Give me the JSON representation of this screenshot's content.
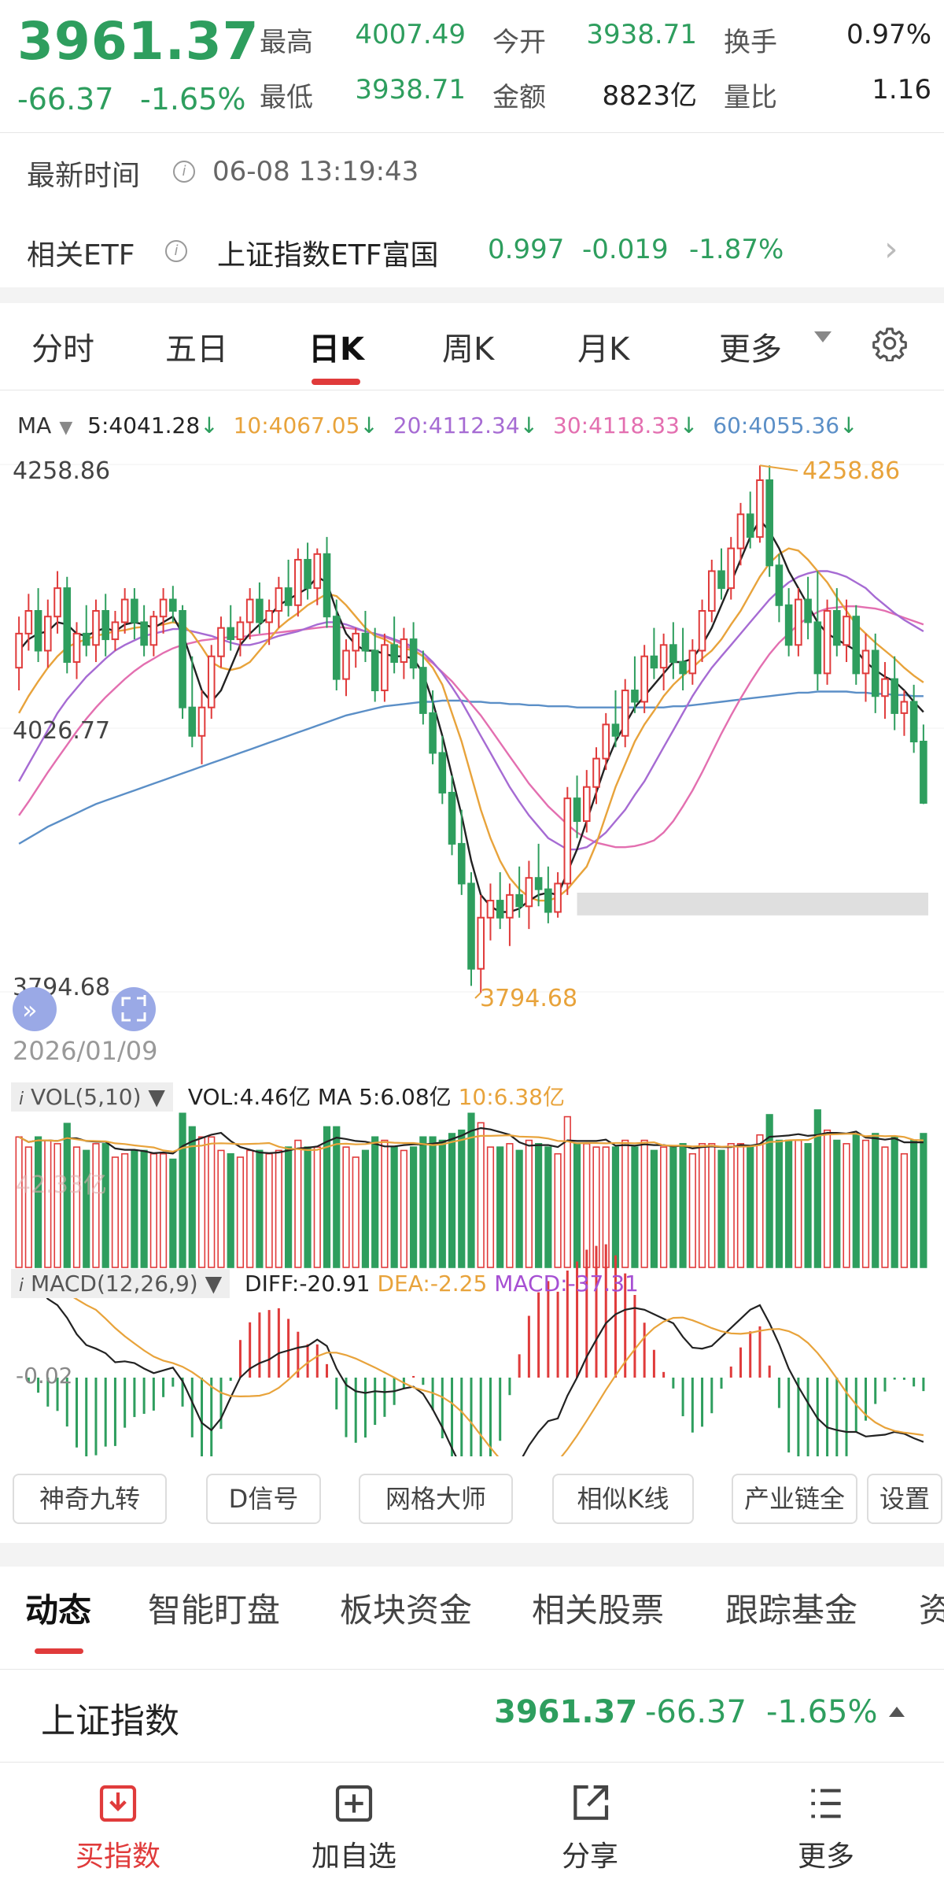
{
  "quote": {
    "price": "3961.37",
    "change": "-66.37",
    "change_pct": "-1.65%",
    "high_label": "最高",
    "high": "4007.49",
    "low_label": "最低",
    "low": "3938.71",
    "open_label": "今开",
    "open": "3938.71",
    "amount_label": "金额",
    "amount": "8823亿",
    "turnover_label": "换手",
    "turnover": "0.97%",
    "volratio_label": "量比",
    "volratio": "1.16"
  },
  "latest_time": {
    "label": "最新时间",
    "value": "06-08 13:19:43"
  },
  "etf": {
    "label": "相关ETF",
    "name": "上证指数ETF富国",
    "price": "0.997",
    "change": "-0.019",
    "change_pct": "-1.87%"
  },
  "period_tabs": [
    "分时",
    "五日",
    "日K",
    "周K",
    "月K",
    "更多"
  ],
  "active_period": "日K",
  "ma_legend": {
    "label": "MA",
    "ma5": "5:4041.28",
    "ma10": "10:4067.05",
    "ma20": "20:4112.34",
    "ma30": "30:4118.33",
    "ma60": "60:4055.36"
  },
  "colors": {
    "up": "#e03b3b",
    "down": "#2e9e5e",
    "ma5": "#222222",
    "ma10": "#e8a33b",
    "ma20": "#a66bd3",
    "ma30": "#e36fb0",
    "ma60": "#5b8fc7"
  },
  "chart_data": [
    {
      "type": "candlestick",
      "price_labels": {
        "top": "4258.86",
        "mid": "4026.77",
        "bottom": "3794.68"
      },
      "annotations": {
        "high": "4258.86",
        "low": "3794.68"
      },
      "start_date": "2026/01/09",
      "ylim": [
        3794.68,
        4258.86
      ],
      "ohlc": [
        [
          4080,
          4125,
          4060,
          4110
        ],
        [
          4110,
          4145,
          4095,
          4130
        ],
        [
          4130,
          4150,
          4085,
          4095
        ],
        [
          4095,
          4140,
          4080,
          4125
        ],
        [
          4125,
          4165,
          4110,
          4150
        ],
        [
          4150,
          4160,
          4075,
          4085
        ],
        [
          4085,
          4120,
          4070,
          4110
        ],
        [
          4110,
          4135,
          4090,
          4100
        ],
        [
          4100,
          4140,
          4085,
          4130
        ],
        [
          4130,
          4145,
          4090,
          4105
        ],
        [
          4105,
          4130,
          4095,
          4120
        ],
        [
          4120,
          4150,
          4110,
          4140
        ],
        [
          4140,
          4150,
          4105,
          4120
        ],
        [
          4120,
          4135,
          4090,
          4100
        ],
        [
          4100,
          4130,
          4090,
          4125
        ],
        [
          4125,
          4150,
          4110,
          4140
        ],
        [
          4140,
          4152,
          4120,
          4130
        ],
        [
          4130,
          4135,
          4035,
          4045
        ],
        [
          4045,
          4090,
          4010,
          4020
        ],
        [
          4020,
          4060,
          3995,
          4045
        ],
        [
          4045,
          4100,
          4035,
          4090
        ],
        [
          4090,
          4125,
          4080,
          4115
        ],
        [
          4115,
          4135,
          4095,
          4105
        ],
        [
          4105,
          4125,
          4090,
          4120
        ],
        [
          4120,
          4150,
          4105,
          4140
        ],
        [
          4140,
          4155,
          4110,
          4120
        ],
        [
          4120,
          4140,
          4100,
          4130
        ],
        [
          4130,
          4160,
          4115,
          4150
        ],
        [
          4150,
          4175,
          4125,
          4135
        ],
        [
          4135,
          4185,
          4125,
          4175
        ],
        [
          4175,
          4190,
          4140,
          4150
        ],
        [
          4150,
          4185,
          4135,
          4180
        ],
        [
          4180,
          4195,
          4115,
          4125
        ],
        [
          4125,
          4140,
          4060,
          4070
        ],
        [
          4070,
          4105,
          4055,
          4095
        ],
        [
          4095,
          4115,
          4080,
          4110
        ],
        [
          4110,
          4130,
          4085,
          4095
        ],
        [
          4095,
          4115,
          4050,
          4060
        ],
        [
          4060,
          4110,
          4050,
          4100
        ],
        [
          4100,
          4125,
          4075,
          4085
        ],
        [
          4085,
          4115,
          4070,
          4105
        ],
        [
          4105,
          4120,
          4070,
          4080
        ],
        [
          4080,
          4095,
          4030,
          4040
        ],
        [
          4040,
          4060,
          3995,
          4005
        ],
        [
          4005,
          4020,
          3960,
          3970
        ],
        [
          3970,
          3985,
          3915,
          3925
        ],
        [
          3925,
          3955,
          3880,
          3890
        ],
        [
          3890,
          3900,
          3800,
          3815
        ],
        [
          3815,
          3880,
          3794,
          3860
        ],
        [
          3860,
          3890,
          3840,
          3875
        ],
        [
          3875,
          3900,
          3850,
          3860
        ],
        [
          3860,
          3890,
          3835,
          3880
        ],
        [
          3880,
          3905,
          3860,
          3870
        ],
        [
          3870,
          3910,
          3850,
          3895
        ],
        [
          3895,
          3925,
          3870,
          3885
        ],
        [
          3885,
          3905,
          3855,
          3865
        ],
        [
          3865,
          3900,
          3860,
          3890
        ],
        [
          3890,
          3975,
          3880,
          3965
        ],
        [
          3965,
          3985,
          3930,
          3945
        ],
        [
          3945,
          3990,
          3935,
          3975
        ],
        [
          3975,
          4010,
          3960,
          4000
        ],
        [
          4000,
          4040,
          3990,
          4030
        ],
        [
          4030,
          4060,
          4010,
          4020
        ],
        [
          4020,
          4070,
          4010,
          4060
        ],
        [
          4060,
          4090,
          4040,
          4050
        ],
        [
          4050,
          4100,
          4040,
          4090
        ],
        [
          4090,
          4115,
          4070,
          4080
        ],
        [
          4080,
          4110,
          4060,
          4100
        ],
        [
          4100,
          4120,
          4070,
          4085
        ],
        [
          4085,
          4115,
          4060,
          4075
        ],
        [
          4075,
          4105,
          4065,
          4095
        ],
        [
          4095,
          4140,
          4085,
          4130
        ],
        [
          4130,
          4175,
          4120,
          4165
        ],
        [
          4165,
          4185,
          4140,
          4150
        ],
        [
          4150,
          4195,
          4140,
          4185
        ],
        [
          4185,
          4225,
          4170,
          4215
        ],
        [
          4215,
          4235,
          4185,
          4195
        ],
        [
          4195,
          4258,
          4190,
          4245
        ],
        [
          4245,
          4258,
          4160,
          4170
        ],
        [
          4170,
          4180,
          4120,
          4135
        ],
        [
          4135,
          4150,
          4090,
          4100
        ],
        [
          4100,
          4150,
          4090,
          4140
        ],
        [
          4140,
          4160,
          4105,
          4120
        ],
        [
          4120,
          4165,
          4060,
          4075
        ],
        [
          4075,
          4140,
          4065,
          4130
        ],
        [
          4130,
          4150,
          4090,
          4100
        ],
        [
          4100,
          4140,
          4085,
          4125
        ],
        [
          4125,
          4135,
          4065,
          4075
        ],
        [
          4075,
          4110,
          4050,
          4095
        ],
        [
          4095,
          4110,
          4040,
          4055
        ],
        [
          4055,
          4085,
          4035,
          4070
        ],
        [
          4070,
          4090,
          4025,
          4040
        ],
        [
          4040,
          4060,
          4020,
          4050
        ],
        [
          4050,
          4065,
          4005,
          4015
        ],
        [
          4015,
          4030,
          3960,
          3961
        ]
      ],
      "ma_lines": {
        "ma5": [
          4095,
          4105,
          4110,
          4112,
          4120,
          4118,
          4110,
          4108,
          4112,
          4115,
          4112,
          4118,
          4120,
          4118,
          4115,
          4120,
          4125,
          4110,
          4085,
          4060,
          4050,
          4060,
          4080,
          4100,
          4110,
          4118,
          4125,
          4135,
          4140,
          4145,
          4150,
          4160,
          4155,
          4130,
          4110,
          4100,
          4095,
          4095,
          4092,
          4090,
          4090,
          4088,
          4075,
          4050,
          4020,
          3985,
          3950,
          3910,
          3880,
          3870,
          3865,
          3865,
          3868,
          3875,
          3880,
          3882,
          3880,
          3900,
          3920,
          3945,
          3970,
          3995,
          4015,
          4030,
          4045,
          4055,
          4065,
          4075,
          4085,
          4085,
          4088,
          4100,
          4115,
          4135,
          4155,
          4175,
          4195,
          4210,
          4200,
          4185,
          4165,
          4150,
          4135,
          4120,
          4110,
          4105,
          4100,
          4095,
          4085,
          4078,
          4072,
          4068,
          4060,
          4050,
          4041
        ],
        "ma10": [
          4040,
          4055,
          4068,
          4080,
          4090,
          4098,
          4102,
          4105,
          4108,
          4110,
          4112,
          4113,
          4115,
          4116,
          4117,
          4118,
          4120,
          4118,
          4110,
          4098,
          4085,
          4080,
          4078,
          4080,
          4085,
          4095,
          4105,
          4115,
          4122,
          4128,
          4135,
          4140,
          4145,
          4143,
          4135,
          4125,
          4115,
          4108,
          4105,
          4100,
          4097,
          4095,
          4090,
          4080,
          4065,
          4040,
          4015,
          3985,
          3955,
          3930,
          3910,
          3895,
          3885,
          3878,
          3875,
          3875,
          3878,
          3885,
          3895,
          3905,
          3925,
          3950,
          3975,
          3995,
          4015,
          4030,
          4042,
          4055,
          4065,
          4073,
          4080,
          4088,
          4095,
          4105,
          4118,
          4130,
          4145,
          4160,
          4172,
          4180,
          4185,
          4183,
          4175,
          4165,
          4155,
          4142,
          4130,
          4118,
          4110,
          4102,
          4095,
          4088,
          4080,
          4073,
          4067
        ],
        "ma20": [
          3980,
          3995,
          4010,
          4025,
          4040,
          4052,
          4062,
          4072,
          4080,
          4088,
          4095,
          4100,
          4104,
          4108,
          4110,
          4112,
          4114,
          4114,
          4112,
          4110,
          4108,
          4105,
          4102,
          4100,
          4100,
          4102,
          4105,
          4108,
          4110,
          4112,
          4115,
          4118,
          4120,
          4120,
          4118,
          4115,
          4112,
          4110,
          4108,
          4105,
          4102,
          4098,
          4093,
          4085,
          4075,
          4063,
          4050,
          4035,
          4020,
          4005,
          3990,
          3975,
          3962,
          3950,
          3940,
          3930,
          3925,
          3920,
          3920,
          3922,
          3928,
          3935,
          3945,
          3955,
          3968,
          3980,
          3995,
          4010,
          4025,
          4040,
          4055,
          4068,
          4080,
          4090,
          4100,
          4110,
          4120,
          4130,
          4140,
          4148,
          4155,
          4160,
          4163,
          4165,
          4165,
          4163,
          4160,
          4155,
          4150,
          4142,
          4135,
          4128,
          4122,
          4117,
          4112
        ],
        "ma30": [
          3950,
          3962,
          3975,
          3988,
          4000,
          4012,
          4024,
          4035,
          4045,
          4054,
          4062,
          4070,
          4077,
          4083,
          4088,
          4093,
          4097,
          4100,
          4102,
          4104,
          4105,
          4106,
          4107,
          4107,
          4108,
          4109,
          4110,
          4111,
          4112,
          4113,
          4114,
          4115,
          4116,
          4116,
          4115,
          4114,
          4112,
          4110,
          4107,
          4104,
          4100,
          4096,
          4090,
          4084,
          4076,
          4068,
          4058,
          4048,
          4038,
          4026,
          4014,
          4002,
          3990,
          3978,
          3968,
          3958,
          3950,
          3942,
          3935,
          3930,
          3926,
          3924,
          3922,
          3922,
          3923,
          3925,
          3928,
          3935,
          3945,
          3958,
          3972,
          3988,
          4005,
          4022,
          4038,
          4053,
          4067,
          4080,
          4092,
          4102,
          4110,
          4118,
          4124,
          4129,
          4132,
          4133,
          4134,
          4134,
          4133,
          4132,
          4130,
          4127,
          4124,
          4121,
          4118
        ],
        "ma60": [
          3925,
          3930,
          3935,
          3940,
          3944,
          3948,
          3952,
          3956,
          3960,
          3963,
          3966,
          3969,
          3972,
          3975,
          3978,
          3981,
          3984,
          3987,
          3990,
          3993,
          3996,
          3999,
          4002,
          4005,
          4008,
          4011,
          4014,
          4017,
          4020,
          4023,
          4026,
          4029,
          4032,
          4035,
          4038,
          4040,
          4042,
          4044,
          4046,
          4047,
          4048,
          4049,
          4050,
          4050,
          4051,
          4051,
          4051,
          4050,
          4050,
          4049,
          4049,
          4048,
          4048,
          4047,
          4047,
          4046,
          4046,
          4046,
          4045,
          4045,
          4045,
          4045,
          4045,
          4045,
          4045,
          4045,
          4045,
          4045,
          4046,
          4046,
          4047,
          4048,
          4049,
          4050,
          4051,
          4052,
          4053,
          4054,
          4055,
          4056,
          4057,
          4058,
          4058,
          4059,
          4059,
          4059,
          4059,
          4058,
          4058,
          4057,
          4057,
          4056,
          4056,
          4055,
          4055
        ]
      },
      "support_zone": [
        3862,
        3882
      ]
    },
    {
      "type": "bar",
      "title": "VOL(5,10)",
      "labels": {
        "vol": "VOL:4.46亿",
        "ma5": "MA 5:6.08亿",
        "ma10": "10:6.38亿",
        "side": "42.33亿"
      }
    },
    {
      "type": "bar",
      "title": "MACD(12,26,9)",
      "labels": {
        "diff": "DIFF:-20.91",
        "dea": "DEA:-2.25",
        "macd": "MACD:-37.31",
        "side": "-0.02"
      }
    }
  ],
  "tools": [
    "神奇九转",
    "D信号",
    "网格大师",
    "相似K线",
    "产业链全",
    "设置"
  ],
  "content_tabs": [
    "动态",
    "智能盯盘",
    "板块资金",
    "相关股票",
    "跟踪基金",
    "资"
  ],
  "active_content_tab": "动态",
  "index_row": {
    "name": "上证指数",
    "price": "3961.37",
    "change": "-66.37",
    "change_pct": "-1.65%"
  },
  "bottom_nav": [
    {
      "label": "买指数",
      "icon": "buy-download-icon"
    },
    {
      "label": "加自选",
      "icon": "add-watchlist-icon"
    },
    {
      "label": "分享",
      "icon": "share-icon"
    },
    {
      "label": "更多",
      "icon": "menu-list-icon"
    }
  ]
}
